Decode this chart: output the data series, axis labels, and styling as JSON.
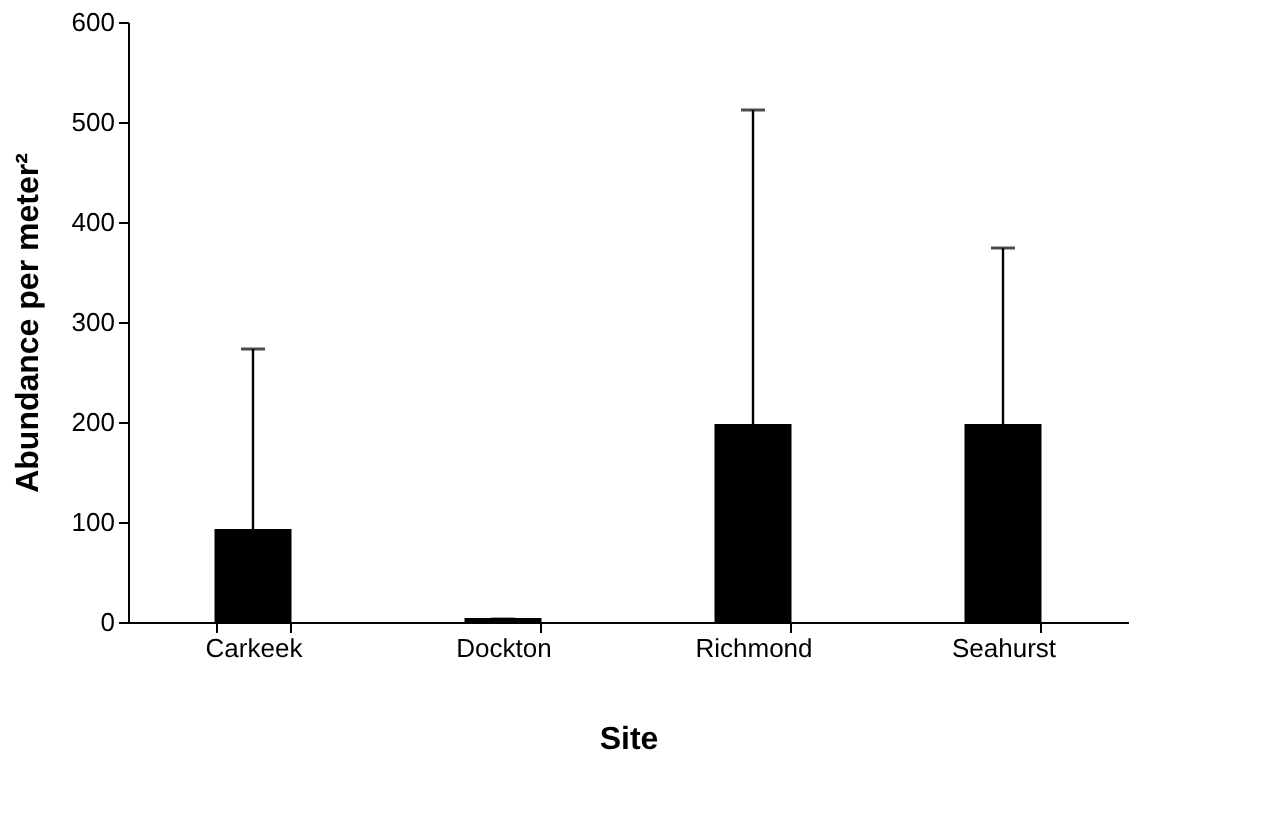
{
  "chart_data": {
    "type": "bar",
    "xlabel": "Site",
    "ylabel": "Abundance per meter²",
    "categories": [
      "Carkeek",
      "Dockton",
      "Richmond",
      "Seahurst"
    ],
    "values": [
      92,
      3,
      197,
      197
    ],
    "errors": [
      [
        92,
        273
      ],
      [
        3,
        3
      ],
      [
        197,
        512
      ],
      [
        197,
        374
      ]
    ],
    "color": "#000000",
    "ylim": [
      0,
      600
    ],
    "yticks": [
      0,
      100,
      200,
      300,
      400,
      500,
      600
    ],
    "grid": false
  }
}
